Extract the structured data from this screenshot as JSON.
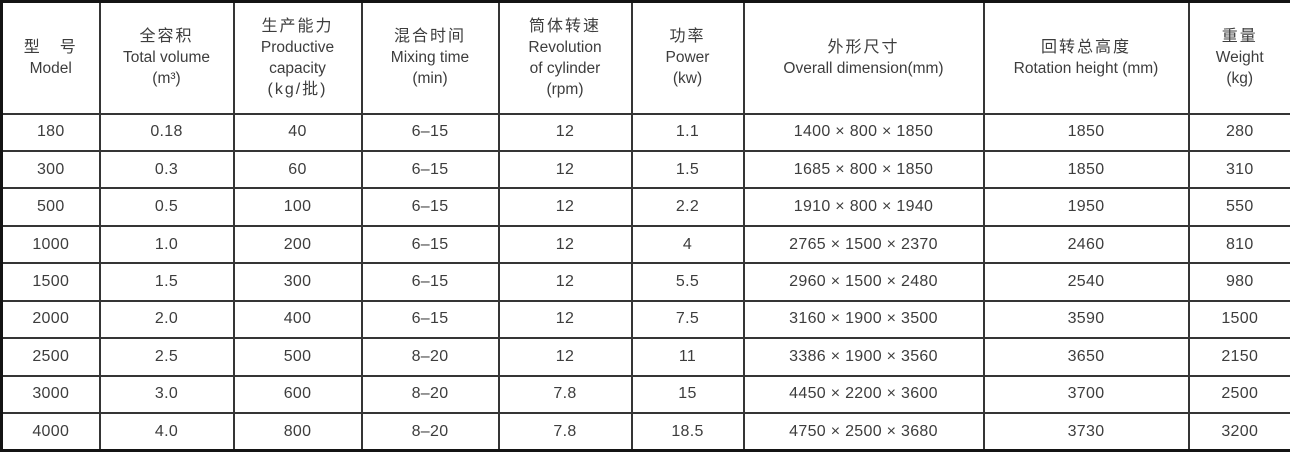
{
  "table": {
    "columns": [
      {
        "lines": [
          "型　号",
          "Model"
        ]
      },
      {
        "lines": [
          "全容积",
          "Total volume",
          "(m³)"
        ]
      },
      {
        "lines": [
          "生产能力",
          "Productive",
          "capacity",
          "(kg/批)"
        ]
      },
      {
        "lines": [
          "混合时间",
          "Mixing time",
          "(min)"
        ]
      },
      {
        "lines": [
          "筒体转速",
          "Revolution",
          "of cylinder",
          "(rpm)"
        ]
      },
      {
        "lines": [
          "功率",
          "Power",
          "(kw)"
        ]
      },
      {
        "lines": [
          "外形尺寸",
          "Overall dimension(mm)"
        ]
      },
      {
        "lines": [
          "回转总高度",
          "Rotation height (mm)"
        ]
      },
      {
        "lines": [
          "重量",
          "Weight",
          "(kg)"
        ]
      }
    ],
    "rows": [
      [
        "180",
        "0.18",
        "40",
        "6–15",
        "12",
        "1.1",
        "1400 × 800 × 1850",
        "1850",
        "280"
      ],
      [
        "300",
        "0.3",
        "60",
        "6–15",
        "12",
        "1.5",
        "1685 × 800 × 1850",
        "1850",
        "310"
      ],
      [
        "500",
        "0.5",
        "100",
        "6–15",
        "12",
        "2.2",
        "1910 × 800 × 1940",
        "1950",
        "550"
      ],
      [
        "1000",
        "1.0",
        "200",
        "6–15",
        "12",
        "4",
        "2765 × 1500 × 2370",
        "2460",
        "810"
      ],
      [
        "1500",
        "1.5",
        "300",
        "6–15",
        "12",
        "5.5",
        "2960 × 1500 × 2480",
        "2540",
        "980"
      ],
      [
        "2000",
        "2.0",
        "400",
        "6–15",
        "12",
        "7.5",
        "3160 × 1900 × 3500",
        "3590",
        "1500"
      ],
      [
        "2500",
        "2.5",
        "500",
        "8–20",
        "12",
        "11",
        "3386 × 1900 × 3560",
        "3650",
        "2150"
      ],
      [
        "3000",
        "3.0",
        "600",
        "8–20",
        "7.8",
        "15",
        "4450 × 2200 × 3600",
        "3700",
        "2500"
      ],
      [
        "4000",
        "4.0",
        "800",
        "8–20",
        "7.8",
        "18.5",
        "4750 × 2500 × 3680",
        "3730",
        "3200"
      ]
    ]
  },
  "colors": {
    "text": "#3d3d3d",
    "inner_border": "#353535",
    "outer_border": "#141414",
    "background": "#ffffff"
  }
}
